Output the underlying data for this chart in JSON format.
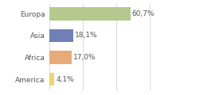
{
  "categories": [
    "Europa",
    "Asia",
    "Africa",
    "America"
  ],
  "values": [
    60.7,
    18.1,
    17.0,
    4.1
  ],
  "labels": [
    "60,7%",
    "18,1%",
    "17,0%",
    "4,1%"
  ],
  "bar_colors": [
    "#b5c98e",
    "#7080b4",
    "#e8aa78",
    "#e8d870"
  ],
  "background_color": "#ffffff",
  "xlim": [
    0,
    100
  ],
  "bar_height": 0.6,
  "label_fontsize": 6.5,
  "tick_fontsize": 6.5,
  "grid_ticks": [
    0,
    25,
    50,
    75,
    100
  ],
  "grid_color": "#cccccc",
  "text_color": "#555555"
}
